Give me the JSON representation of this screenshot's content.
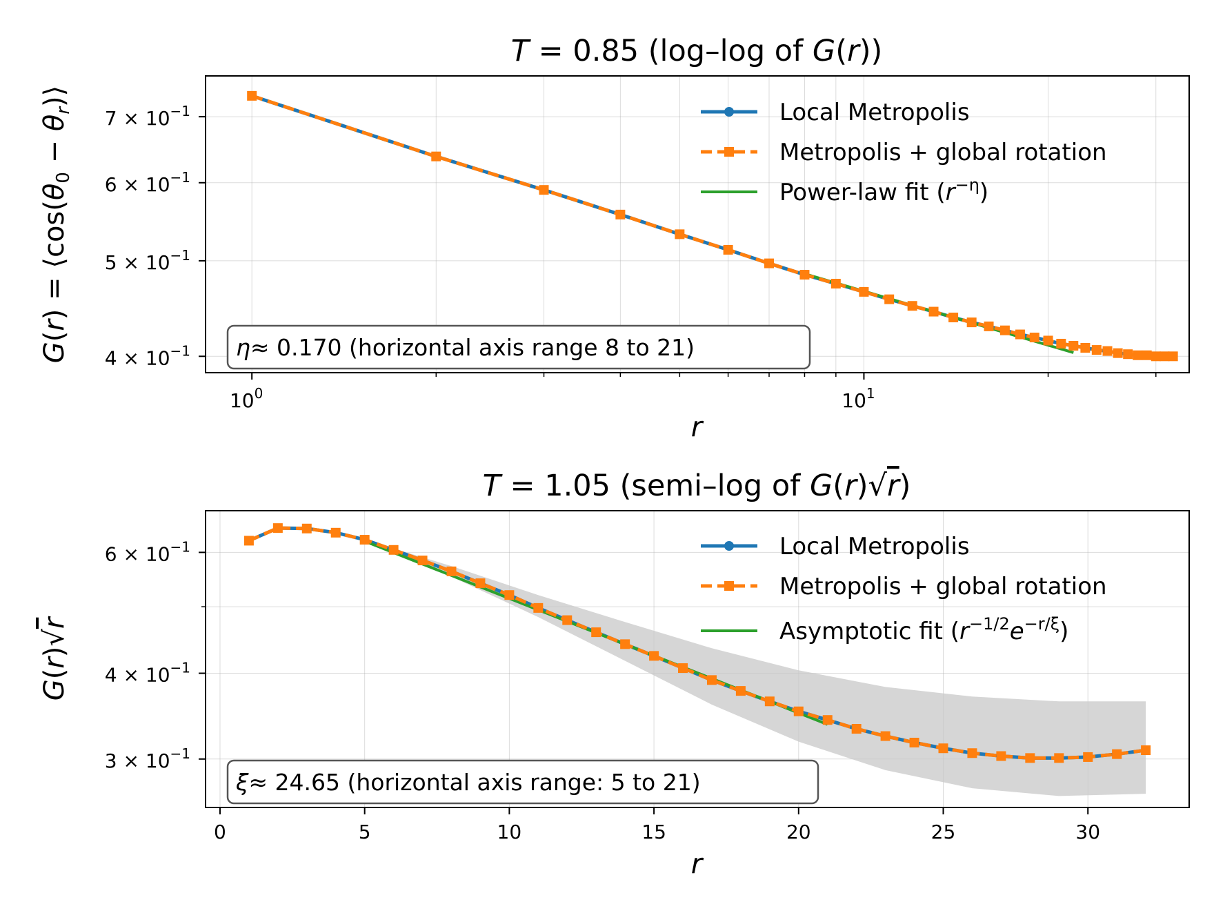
{
  "chart_data": [
    {
      "type": "line",
      "title": "T = 0.85 (log–log of G(r))",
      "xlabel": "r",
      "ylabel": "G(r) = ⟨cos(θ0 − θr)⟩",
      "xscale": "log",
      "yscale": "log",
      "xlim": [
        0.84,
        34
      ],
      "ylim": [
        0.385,
        0.77
      ],
      "x_tick_labels": [
        {
          "value": 1,
          "base": "10",
          "exp": "0"
        },
        {
          "value": 10,
          "base": "10",
          "exp": "1"
        }
      ],
      "y_tick_labels": [
        {
          "value": 0.4,
          "mant": "4",
          "exp": "−1"
        },
        {
          "value": 0.5,
          "mant": "5",
          "exp": "−1"
        },
        {
          "value": 0.6,
          "mant": "6",
          "exp": "−1"
        },
        {
          "value": 0.7,
          "mant": "7",
          "exp": "−1"
        }
      ],
      "grid": true,
      "legend_position": "top-right",
      "x": [
        1,
        2,
        3,
        4,
        5,
        6,
        7,
        8,
        9,
        10,
        11,
        12,
        13,
        14,
        15,
        16,
        17,
        18,
        19,
        20,
        21,
        22,
        23,
        24,
        25,
        26,
        27,
        28,
        29,
        30,
        31,
        32
      ],
      "series": [
        {
          "name": "Local Metropolis",
          "color": "#1f77b4",
          "style": "solid",
          "marker": "circle",
          "values": [
            0.735,
            0.638,
            0.59,
            0.557,
            0.532,
            0.513,
            0.497,
            0.484,
            0.474,
            0.465,
            0.457,
            0.45,
            0.444,
            0.438,
            0.433,
            0.429,
            0.425,
            0.421,
            0.418,
            0.415,
            0.412,
            0.41,
            0.408,
            0.406,
            0.405,
            0.403,
            0.402,
            0.401,
            0.401,
            0.4,
            0.4,
            0.4
          ]
        },
        {
          "name": "Metropolis + global rotation",
          "color": "#ff7f0e",
          "style": "dashed",
          "marker": "square",
          "values": [
            0.735,
            0.638,
            0.59,
            0.557,
            0.532,
            0.513,
            0.497,
            0.484,
            0.474,
            0.465,
            0.457,
            0.45,
            0.444,
            0.438,
            0.433,
            0.429,
            0.425,
            0.421,
            0.418,
            0.415,
            0.412,
            0.41,
            0.408,
            0.406,
            0.405,
            0.403,
            0.402,
            0.401,
            0.401,
            0.4,
            0.4,
            0.4
          ]
        },
        {
          "name": "Power-law fit (r^−η)",
          "name_main": "Power-law fit (",
          "name_base": "r",
          "name_sup": "−η",
          "name_close": ")",
          "color": "#2ca02c",
          "style": "solid",
          "marker": "none",
          "x": [
            8,
            22
          ],
          "values": [
            0.485,
            0.4035
          ]
        }
      ],
      "annotation": {
        "main": "≈ 0.170  (horizontal axis range 8 to 21)",
        "symbol": "η"
      }
    },
    {
      "type": "line",
      "title": "T = 1.05 (semi–log of  G(r)√r)",
      "xlabel": "r",
      "ylabel": "G(r)√r",
      "xscale": "linear",
      "yscale": "log",
      "xlim": [
        -0.5,
        33.5
      ],
      "ylim": [
        0.255,
        0.69
      ],
      "x_ticks": [
        0,
        5,
        10,
        15,
        20,
        25,
        30
      ],
      "y_tick_labels": [
        {
          "value": 0.3,
          "mant": "3",
          "exp": "−1"
        },
        {
          "value": 0.4,
          "mant": "4",
          "exp": "−1"
        },
        {
          "value": 0.6,
          "mant": "6",
          "exp": "−1"
        }
      ],
      "y_minor_ticks": [
        0.5
      ],
      "grid": true,
      "legend_position": "top-right",
      "x": [
        1,
        2,
        3,
        4,
        5,
        6,
        7,
        8,
        9,
        10,
        11,
        12,
        13,
        14,
        15,
        16,
        17,
        18,
        19,
        20,
        21,
        22,
        23,
        24,
        25,
        26,
        27,
        28,
        29,
        30,
        31,
        32
      ],
      "series": [
        {
          "name": "Local Metropolis",
          "color": "#1f77b4",
          "style": "solid",
          "marker": "circle",
          "values": [
            0.624,
            0.651,
            0.65,
            0.641,
            0.626,
            0.605,
            0.584,
            0.563,
            0.541,
            0.52,
            0.498,
            0.478,
            0.459,
            0.441,
            0.424,
            0.407,
            0.391,
            0.377,
            0.364,
            0.352,
            0.342,
            0.332,
            0.324,
            0.317,
            0.311,
            0.306,
            0.303,
            0.301,
            0.301,
            0.302,
            0.305,
            0.309
          ]
        },
        {
          "name": "Metropolis + global rotation",
          "color": "#ff7f0e",
          "style": "dashed",
          "marker": "square",
          "values": [
            0.624,
            0.651,
            0.65,
            0.641,
            0.626,
            0.605,
            0.584,
            0.563,
            0.541,
            0.52,
            0.498,
            0.478,
            0.459,
            0.441,
            0.424,
            0.407,
            0.391,
            0.377,
            0.364,
            0.352,
            0.342,
            0.332,
            0.324,
            0.317,
            0.311,
            0.306,
            0.303,
            0.301,
            0.301,
            0.302,
            0.305,
            0.309
          ]
        },
        {
          "name": "Asymptotic fit (r^−1/2 e^−r/ξ)",
          "name_main": "Asymptotic fit (",
          "name_b1": "r",
          "name_s1": "−1/2",
          "name_b2": "e",
          "name_s2": "−r/ξ",
          "name_close": ")",
          "color": "#2ca02c",
          "style": "solid",
          "marker": "none",
          "x": [
            5,
            21
          ],
          "values": [
            0.623,
            0.337
          ]
        }
      ],
      "band": {
        "x": [
          5,
          8,
          11,
          14,
          17,
          20,
          23,
          26,
          29,
          32
        ],
        "lower": [
          0.62,
          0.553,
          0.483,
          0.417,
          0.36,
          0.318,
          0.289,
          0.272,
          0.265,
          0.267
        ],
        "upper": [
          0.626,
          0.573,
          0.52,
          0.475,
          0.435,
          0.404,
          0.382,
          0.37,
          0.364,
          0.364
        ]
      },
      "annotation": {
        "main": "≈ 24.65  (horizontal axis range: 5 to 21)",
        "symbol": "ξ"
      }
    }
  ]
}
